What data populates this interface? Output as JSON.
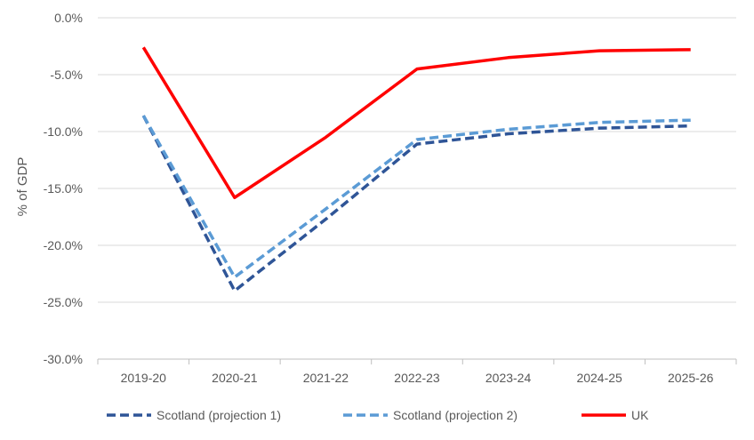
{
  "chart_data": {
    "type": "line",
    "title": "",
    "xlabel": "",
    "ylabel": "% of GDP",
    "categories": [
      "2019-20",
      "2020-21",
      "2021-22",
      "2022-23",
      "2023-24",
      "2024-25",
      "2025-26"
    ],
    "ylim": [
      -30,
      0
    ],
    "yticks": [
      0,
      -5,
      -10,
      -15,
      -20,
      -25,
      -30
    ],
    "ytick_labels": [
      "0.0%",
      "-5.0%",
      "-10.0%",
      "-15.0%",
      "-20.0%",
      "-25.0%",
      "-30.0%"
    ],
    "grid": true,
    "legend_position": "bottom",
    "series": [
      {
        "name": "Scotland (projection 1)",
        "color": "#2f5597",
        "dash": "dashed",
        "values": [
          -8.6,
          -24.0,
          -17.7,
          -11.1,
          -10.2,
          -9.7,
          -9.5
        ]
      },
      {
        "name": "Scotland (projection 2)",
        "color": "#5b9bd5",
        "dash": "dashed",
        "values": [
          -8.6,
          -22.8,
          -16.8,
          -10.7,
          -9.8,
          -9.2,
          -9.0
        ]
      },
      {
        "name": "UK",
        "color": "#ff0000",
        "dash": "solid",
        "values": [
          -2.6,
          -15.8,
          -10.5,
          -4.5,
          -3.5,
          -2.9,
          -2.8
        ]
      }
    ]
  }
}
